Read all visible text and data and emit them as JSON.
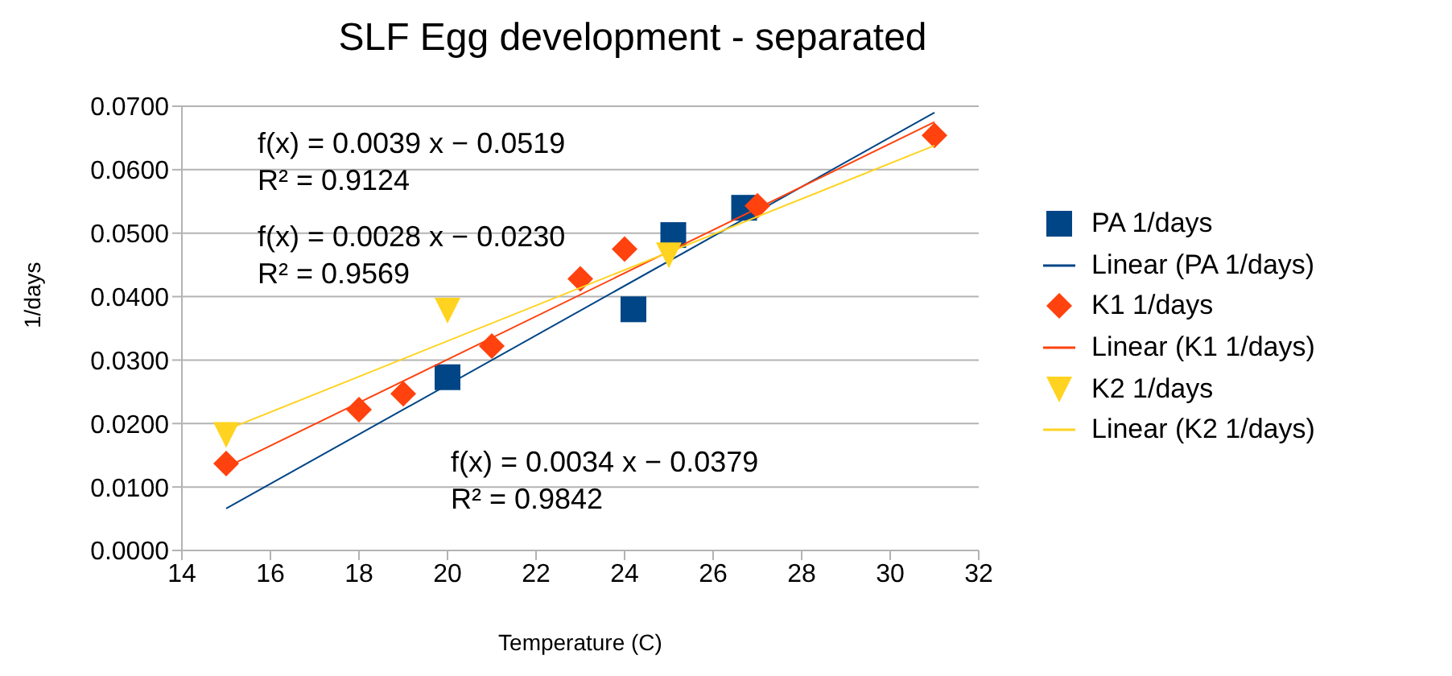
{
  "chart_data": {
    "type": "scatter",
    "title": "SLF Egg development - separated",
    "xlabel": "Temperature (C)",
    "ylabel": "1/days",
    "xlim": [
      14,
      32
    ],
    "xticks": [
      14,
      16,
      18,
      20,
      22,
      24,
      26,
      28,
      30,
      32
    ],
    "ylim": [
      0,
      0.07
    ],
    "yticks": [
      {
        "value": 0,
        "label": "0.0000"
      },
      {
        "value": 0.01,
        "label": "0.0100"
      },
      {
        "value": 0.02,
        "label": "0.0200"
      },
      {
        "value": 0.03,
        "label": "0.0300"
      },
      {
        "value": 0.04,
        "label": "0.0400"
      },
      {
        "value": 0.05,
        "label": "0.0500"
      },
      {
        "value": 0.06,
        "label": "0.0600"
      },
      {
        "value": 0.07,
        "label": "0.0700"
      }
    ],
    "grid": "y",
    "legend": "right",
    "series": [
      {
        "name": "PA 1/days",
        "marker": "square",
        "color": "#004586",
        "x": [
          20,
          24.2,
          25.1,
          26.7
        ],
        "values": [
          0.0273,
          0.038,
          0.0497,
          0.054
        ]
      },
      {
        "name": "Linear (PA 1/days)",
        "type": "line",
        "marker": "none",
        "color": "#004586",
        "x": [
          15,
          31
        ],
        "values": [
          0.0066,
          0.069
        ]
      },
      {
        "name": "K1 1/days",
        "marker": "diamond",
        "color": "#ff420e",
        "x": [
          15,
          18,
          19,
          21,
          23,
          24,
          27,
          31
        ],
        "values": [
          0.0137,
          0.0222,
          0.0247,
          0.0322,
          0.0428,
          0.0475,
          0.0543,
          0.0654
        ]
      },
      {
        "name": "Linear (K1 1/days)",
        "type": "line",
        "marker": "none",
        "color": "#ff420e",
        "x": [
          15,
          31
        ],
        "values": [
          0.0131,
          0.0675
        ]
      },
      {
        "name": "K2 1/days",
        "marker": "triangle",
        "color": "#ffd320",
        "x": [
          15,
          20,
          25
        ],
        "values": [
          0.0182,
          0.0378,
          0.0465
        ]
      },
      {
        "name": "Linear (K2 1/days)",
        "type": "line",
        "marker": "none",
        "color": "#ffd320",
        "x": [
          15,
          31
        ],
        "values": [
          0.019,
          0.0638
        ]
      }
    ],
    "annotations": [
      "f(x) = 0.0039 x − 0.0519\nR² = 0.9124",
      "f(x) = 0.0028 x − 0.0230\nR² = 0.9569",
      "f(x) = 0.0034 x − 0.0379\nR² = 0.9842"
    ]
  }
}
